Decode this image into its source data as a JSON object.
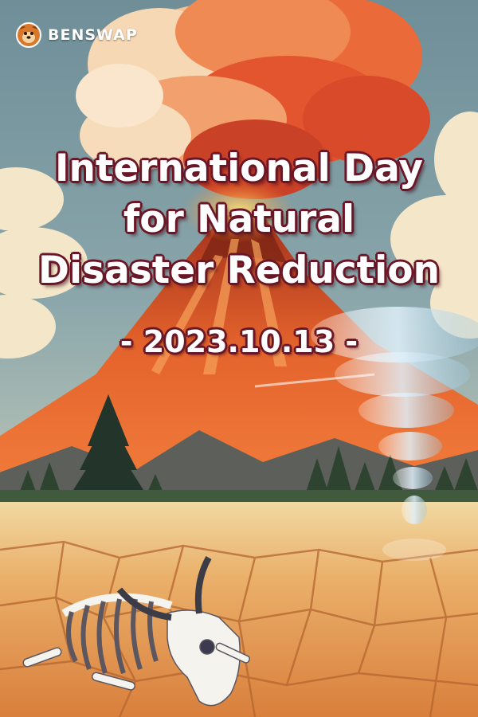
{
  "brand": {
    "name": "BENSWAP",
    "logo_icon": "dog-face-logo-icon"
  },
  "poster": {
    "title_lines": [
      "International Day",
      "for Natural",
      "Disaster Reduction"
    ],
    "date": "- 2023.10.13 -"
  },
  "illustration": {
    "elements": [
      "erupting-volcano",
      "ash-cloud",
      "tornado",
      "pine-forest",
      "cracked-dry-earth",
      "animal-skeleton-with-horned-skull"
    ]
  },
  "colors": {
    "sky": "#7e9aa2",
    "lava": "#e85a26",
    "title_outline": "#6a1626",
    "title_fill": "#ffffff",
    "ground": "#e8a25c"
  }
}
